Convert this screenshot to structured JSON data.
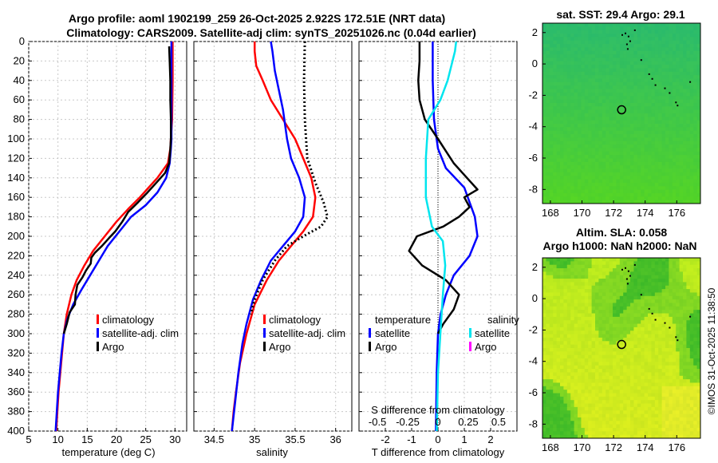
{
  "titles": {
    "line1": "Argo profile: aoml 1902199_259 26-Oct-2025 2.922S 172.51E (NRT data)",
    "line2": "Climatology: CARS2009. Satellite-adj clim: synTS_20251026.nc (0.04d earlier)",
    "sst": "sat. SST: 29.4 Argo: 29.1",
    "sla1": "Altim. SLA: 0.058",
    "sla2": "Argo h1000: NaN h2000: NaN"
  },
  "copyright": "©IMOS 31-Oct-2025 11:38:50",
  "colors": {
    "climatology": "#ff0000",
    "satellite": "#0000ff",
    "argo": "#000000",
    "sal_satellite": "#00e5ee",
    "sal_argo": "#ff00ff"
  },
  "depth_axis": {
    "ylim": [
      0,
      400
    ],
    "ticks": [
      "0",
      "20",
      "40",
      "60",
      "80",
      "100",
      "120",
      "140",
      "160",
      "180",
      "200",
      "220",
      "240",
      "260",
      "280",
      "300",
      "320",
      "340",
      "360",
      "380",
      "400"
    ]
  },
  "chart_data": [
    {
      "type": "line",
      "name": "temperature",
      "xlabel": "temperature (deg C)",
      "xlim": [
        5,
        32
      ],
      "xticks": [
        "5",
        "10",
        "15",
        "20",
        "25",
        "30"
      ],
      "legend": [
        "climatology",
        "satellite-adj. clim",
        "Argo"
      ],
      "series": [
        {
          "name": "climatology",
          "color": "#ff0000",
          "points": [
            [
              29.6,
              0
            ],
            [
              29.6,
              40
            ],
            [
              29.5,
              80
            ],
            [
              29.3,
              100
            ],
            [
              29.2,
              110
            ],
            [
              28.8,
              125
            ],
            [
              27.0,
              140
            ],
            [
              25.5,
              150
            ],
            [
              24.0,
              160
            ],
            [
              22.0,
              172
            ],
            [
              20.0,
              185
            ],
            [
              18.0,
              200
            ],
            [
              16.0,
              215
            ],
            [
              14.5,
              230
            ],
            [
              13.2,
              245
            ],
            [
              12.3,
              260
            ],
            [
              11.5,
              280
            ],
            [
              11.0,
              300
            ],
            [
              10.7,
              320
            ],
            [
              10.4,
              340
            ],
            [
              10.1,
              360
            ],
            [
              9.9,
              380
            ],
            [
              9.7,
              400
            ]
          ]
        },
        {
          "name": "satellite-adj. clim",
          "color": "#0000ff",
          "points": [
            [
              29.4,
              0
            ],
            [
              29.4,
              50
            ],
            [
              29.4,
              100
            ],
            [
              29.3,
              110
            ],
            [
              29.1,
              125
            ],
            [
              28.5,
              140
            ],
            [
              27.0,
              155
            ],
            [
              25.0,
              168
            ],
            [
              22.5,
              180
            ],
            [
              20.5,
              195
            ],
            [
              18.5,
              210
            ],
            [
              17.0,
              225
            ],
            [
              15.5,
              240
            ],
            [
              14.0,
              255
            ],
            [
              12.6,
              270
            ],
            [
              11.6,
              285
            ],
            [
              11.0,
              300
            ],
            [
              10.6,
              320
            ],
            [
              10.3,
              340
            ],
            [
              10.0,
              360
            ],
            [
              9.8,
              380
            ],
            [
              9.6,
              400
            ]
          ]
        },
        {
          "name": "Argo",
          "color": "#000000",
          "points": [
            [
              29.0,
              5
            ],
            [
              29.1,
              20
            ],
            [
              29.2,
              40
            ],
            [
              29.2,
              60
            ],
            [
              29.3,
              80
            ],
            [
              29.3,
              100
            ],
            [
              29.2,
              110
            ],
            [
              29.0,
              125
            ],
            [
              28.3,
              135
            ],
            [
              26.8,
              145
            ],
            [
              25.3,
              155
            ],
            [
              23.7,
              165
            ],
            [
              22.0,
              175
            ],
            [
              21.0,
              185
            ],
            [
              19.8,
              195
            ],
            [
              18.7,
              202
            ],
            [
              17.5,
              210
            ],
            [
              16.3,
              217
            ],
            [
              15.7,
              222
            ],
            [
              15.6,
              228
            ],
            [
              14.8,
              235
            ],
            [
              14.2,
              242
            ],
            [
              13.3,
              250
            ],
            [
              13.0,
              260
            ],
            [
              12.9,
              270
            ],
            [
              12.0,
              278
            ],
            [
              11.5,
              290
            ],
            [
              11.0,
              300
            ]
          ]
        }
      ]
    },
    {
      "type": "line",
      "name": "salinity",
      "xlabel": "salinity",
      "xlim": [
        34.25,
        36.2
      ],
      "xticks": [
        "34.5",
        "35",
        "35.5",
        "36"
      ],
      "legend": [
        "climatology",
        "satellite-adj. clim",
        "Argo"
      ],
      "series": [
        {
          "name": "climatology",
          "color": "#ff0000",
          "points": [
            [
              35.0,
              0
            ],
            [
              35.0,
              10
            ],
            [
              35.02,
              25
            ],
            [
              35.1,
              40
            ],
            [
              35.2,
              60
            ],
            [
              35.35,
              80
            ],
            [
              35.5,
              100
            ],
            [
              35.6,
              120
            ],
            [
              35.7,
              140
            ],
            [
              35.75,
              160
            ],
            [
              35.72,
              180
            ],
            [
              35.6,
              195
            ],
            [
              35.45,
              210
            ],
            [
              35.3,
              225
            ],
            [
              35.15,
              245
            ],
            [
              35.0,
              270
            ],
            [
              34.9,
              300
            ],
            [
              34.82,
              330
            ],
            [
              34.77,
              360
            ],
            [
              34.74,
              380
            ],
            [
              34.72,
              400
            ]
          ]
        },
        {
          "name": "satellite-adj. clim",
          "color": "#0000ff",
          "points": [
            [
              35.2,
              0
            ],
            [
              35.22,
              10
            ],
            [
              35.25,
              30
            ],
            [
              35.3,
              50
            ],
            [
              35.35,
              70
            ],
            [
              35.4,
              100
            ],
            [
              35.45,
              120
            ],
            [
              35.55,
              140
            ],
            [
              35.62,
              160
            ],
            [
              35.6,
              180
            ],
            [
              35.5,
              195
            ],
            [
              35.35,
              210
            ],
            [
              35.2,
              225
            ],
            [
              35.08,
              245
            ],
            [
              34.98,
              265
            ],
            [
              34.9,
              290
            ],
            [
              34.85,
              310
            ],
            [
              34.8,
              340
            ],
            [
              34.76,
              370
            ],
            [
              34.72,
              400
            ]
          ]
        },
        {
          "name": "Argo",
          "color": "#000000",
          "dotted": true,
          "points": [
            [
              35.62,
              0
            ],
            [
              35.61,
              40
            ],
            [
              35.62,
              80
            ],
            [
              35.65,
              120
            ],
            [
              35.75,
              145
            ],
            [
              35.85,
              165
            ],
            [
              35.9,
              180
            ],
            [
              35.82,
              190
            ],
            [
              35.6,
              200
            ],
            [
              35.4,
              210
            ],
            [
              35.25,
              225
            ],
            [
              35.1,
              245
            ],
            [
              35.0,
              265
            ],
            [
              34.95,
              280
            ]
          ]
        }
      ]
    },
    {
      "type": "line",
      "name": "difference",
      "xlabel": "T difference from climatology",
      "top_label": "S difference from climatology",
      "xlim": [
        -3,
        3
      ],
      "xticks": [
        "-2",
        "-1",
        "0",
        "1",
        "2"
      ],
      "top_ticks": [
        "-0.5",
        "-0.25",
        "0",
        "0.25",
        "0.5"
      ],
      "legend_left_title": "temperature",
      "legend_right_title": "salinity",
      "legend": [
        "satellite",
        "Argo",
        "satellite",
        "Argo"
      ],
      "series": [
        {
          "name": "T satellite",
          "color": "#0000ff",
          "points": [
            [
              -0.2,
              0
            ],
            [
              -0.2,
              40
            ],
            [
              -0.15,
              80
            ],
            [
              0.0,
              110
            ],
            [
              0.3,
              130
            ],
            [
              1.0,
              150
            ],
            [
              1.4,
              180
            ],
            [
              1.5,
              200
            ],
            [
              1.2,
              220
            ],
            [
              0.6,
              240
            ],
            [
              0.3,
              260
            ],
            [
              0.1,
              280
            ],
            [
              0.0,
              300
            ],
            [
              -0.05,
              340
            ],
            [
              -0.08,
              400
            ]
          ]
        },
        {
          "name": "T Argo",
          "color": "#000000",
          "points": [
            [
              -0.7,
              0
            ],
            [
              -0.7,
              20
            ],
            [
              -0.75,
              40
            ],
            [
              -0.7,
              60
            ],
            [
              -0.5,
              80
            ],
            [
              0.0,
              100
            ],
            [
              0.6,
              125
            ],
            [
              1.1,
              140
            ],
            [
              1.5,
              152
            ],
            [
              1.0,
              160
            ],
            [
              1.2,
              170
            ],
            [
              0.8,
              180
            ],
            [
              0.2,
              190
            ],
            [
              -0.8,
              200
            ],
            [
              -1.1,
              215
            ],
            [
              -0.6,
              230
            ],
            [
              0.3,
              245
            ],
            [
              0.8,
              260
            ],
            [
              0.6,
              275
            ],
            [
              0.2,
              290
            ],
            [
              0.0,
              300
            ]
          ]
        },
        {
          "name": "S satellite",
          "color": "#00e5ee",
          "units": "salinity",
          "points": [
            [
              0.15,
              0
            ],
            [
              0.14,
              10
            ],
            [
              0.08,
              40
            ],
            [
              0.02,
              60
            ],
            [
              -0.08,
              80
            ],
            [
              -0.1,
              120
            ],
            [
              -0.1,
              160
            ],
            [
              -0.05,
              190
            ],
            [
              0.04,
              205
            ],
            [
              0.06,
              230
            ],
            [
              0.04,
              260
            ],
            [
              0.02,
              300
            ],
            [
              0.0,
              340
            ],
            [
              -0.01,
              400
            ]
          ]
        }
      ]
    },
    {
      "type": "heatmap",
      "name": "sst_map",
      "title": "sat. SST: 29.4 Argo: 29.1",
      "xlim": [
        167.5,
        177.5
      ],
      "ylim": [
        -8.9,
        2.6
      ],
      "xticks": [
        "168",
        "170",
        "172",
        "174",
        "176"
      ],
      "yticks": [
        "2",
        "0",
        "-2",
        "-4",
        "-6",
        "-8"
      ],
      "marker": [
        172.51,
        -2.922
      ]
    },
    {
      "type": "heatmap",
      "name": "sla_map",
      "title": "Altim. SLA: 0.058",
      "xlim": [
        167.5,
        177.5
      ],
      "ylim": [
        -8.9,
        2.6
      ],
      "xticks": [
        "168",
        "170",
        "172",
        "174",
        "176"
      ],
      "yticks": [
        "2",
        "0",
        "-2",
        "-4",
        "-6",
        "-8"
      ],
      "marker": [
        172.51,
        -2.922
      ]
    }
  ]
}
